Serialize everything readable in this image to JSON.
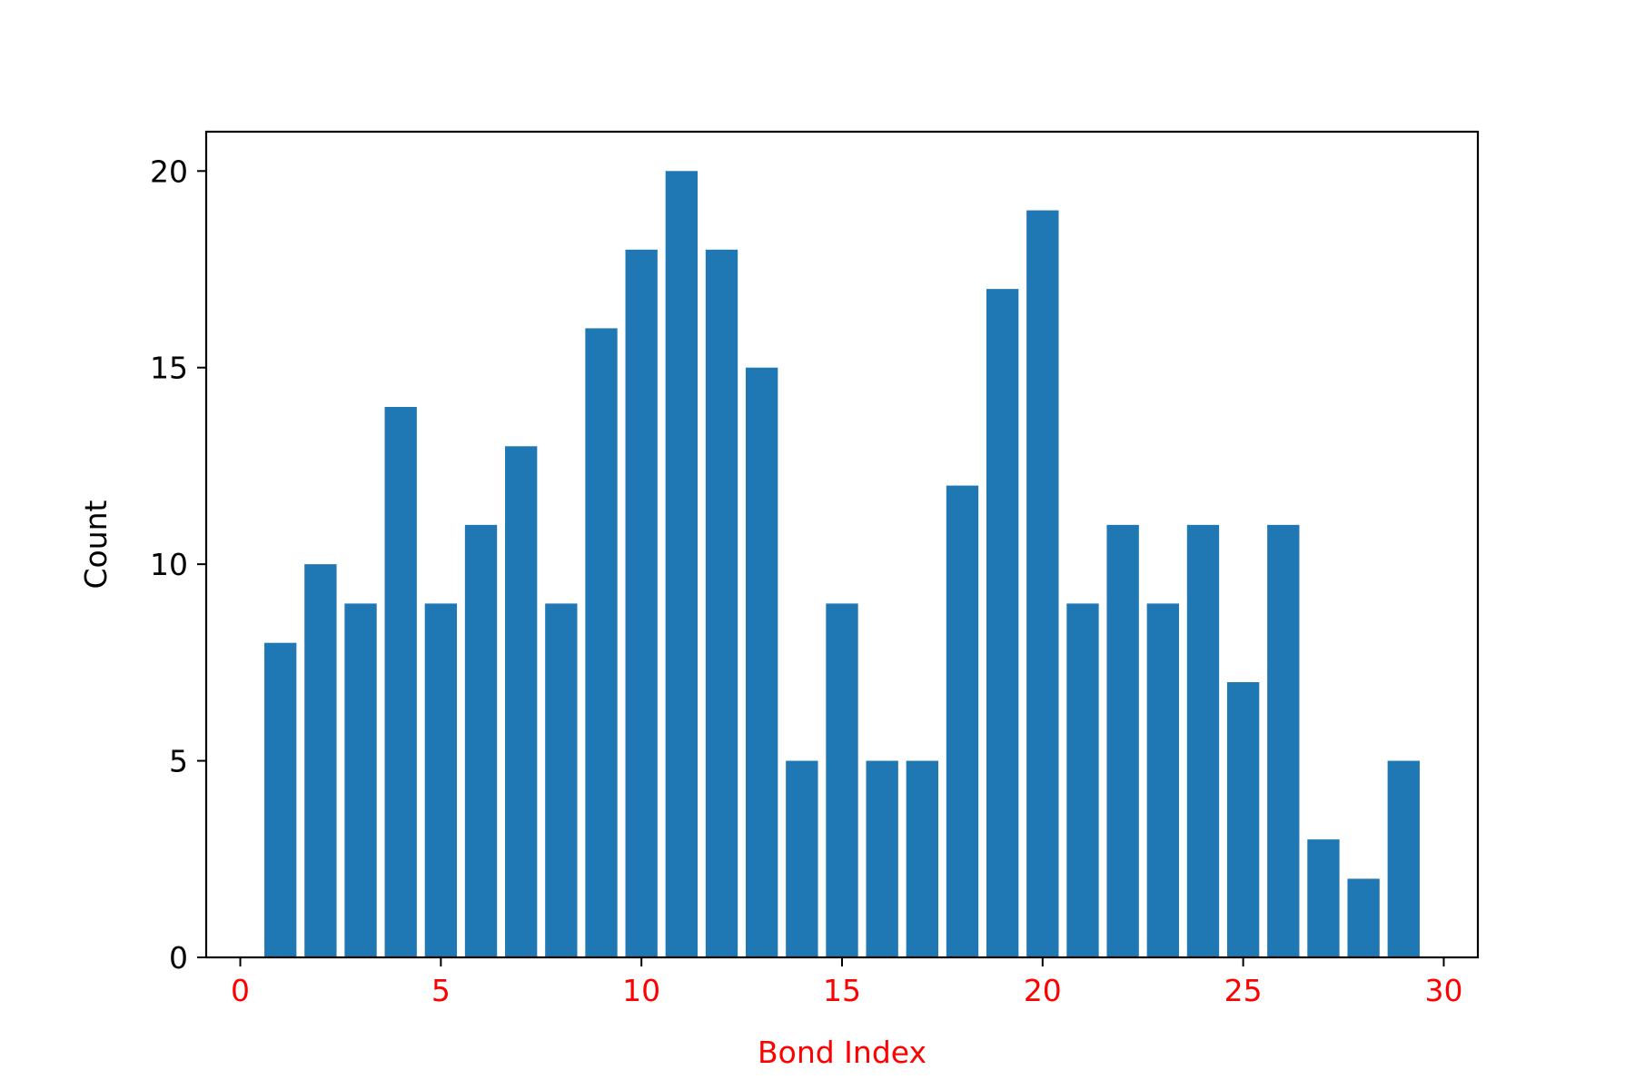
{
  "chart_data": {
    "type": "bar",
    "x": [
      1,
      2,
      3,
      4,
      5,
      6,
      7,
      8,
      9,
      10,
      11,
      12,
      13,
      14,
      15,
      16,
      17,
      18,
      19,
      20,
      21,
      22,
      23,
      24,
      25,
      26,
      27,
      28,
      29
    ],
    "values": [
      8,
      10,
      9,
      14,
      9,
      11,
      13,
      9,
      16,
      18,
      20,
      18,
      15,
      5,
      9,
      5,
      5,
      12,
      17,
      19,
      9,
      11,
      9,
      11,
      7,
      11,
      3,
      2,
      5
    ],
    "title": "",
    "xlabel": "Bond Index",
    "ylabel": "Count",
    "xlim": [
      -0.85,
      30.85
    ],
    "ylim": [
      0,
      21
    ],
    "xticks": [
      0,
      5,
      10,
      15,
      20,
      25,
      30
    ],
    "yticks": [
      0,
      5,
      10,
      15,
      20
    ],
    "grid": false,
    "colors": {
      "bar": "#1f77b4",
      "xaxis_text": "#ff0000",
      "yaxis_text": "#000000",
      "frame": "#000000"
    }
  }
}
